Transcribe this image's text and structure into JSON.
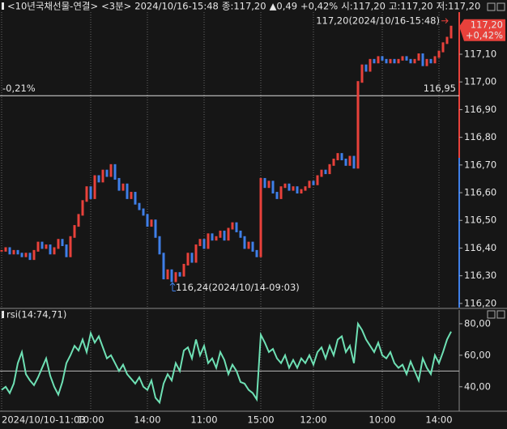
{
  "header": {
    "items": [
      {
        "text": "<10년국채선물-연결>",
        "color": "#e6e6e6"
      },
      {
        "text": "<3분>",
        "color": "#e6e6e6"
      },
      {
        "text": "2024/10/16-15:48",
        "color": "#e6e6e6"
      },
      {
        "text": "종:117,20",
        "color": "#e6e6e6"
      },
      {
        "text": "▲0,49",
        "color": "#ff4a4a"
      },
      {
        "text": "+0,42%",
        "color": "#ff4a4a"
      },
      {
        "text": "시:117,20",
        "color": "#e6e6e6"
      },
      {
        "text": "고:117,20",
        "color": "#e6e6e6"
      },
      {
        "text": "저:117,20",
        "color": "#e6e6e6"
      }
    ]
  },
  "chart_data": [
    {
      "type": "candlestick",
      "up_color": "#e8413b",
      "down_color": "#3f7fe8",
      "values": [
        116.39,
        116.4,
        116.38,
        116.39,
        116.38,
        116.37,
        116.38,
        116.36,
        116.39,
        116.42,
        116.4,
        116.41,
        116.38,
        116.4,
        116.43,
        116.41,
        116.37,
        116.44,
        116.48,
        116.52,
        116.57,
        116.62,
        116.58,
        116.66,
        116.64,
        116.68,
        116.66,
        116.7,
        116.65,
        116.61,
        116.63,
        116.58,
        116.6,
        116.56,
        116.54,
        116.52,
        116.48,
        116.5,
        116.44,
        116.38,
        116.29,
        116.32,
        116.28,
        116.31,
        116.3,
        116.34,
        116.38,
        116.35,
        116.41,
        116.43,
        116.4,
        116.45,
        116.43,
        116.44,
        116.46,
        116.43,
        116.47,
        116.49,
        116.46,
        116.44,
        116.4,
        116.42,
        116.39,
        116.37,
        116.65,
        116.62,
        116.64,
        116.6,
        116.58,
        116.62,
        116.63,
        116.61,
        116.62,
        116.6,
        116.61,
        116.62,
        116.64,
        116.63,
        116.66,
        116.68,
        116.67,
        116.7,
        116.72,
        116.74,
        116.72,
        116.7,
        116.73,
        116.69,
        117.0,
        117.06,
        117.04,
        117.08,
        117.07,
        117.09,
        117.08,
        117.07,
        117.08,
        117.07,
        117.08,
        117.09,
        117.08,
        117.07,
        117.08,
        117.1,
        117.06,
        117.08,
        117.07,
        117.09,
        117.11,
        117.14,
        117.16,
        117.2
      ],
      "ylim": [
        116.185,
        117.252
      ],
      "yticks": [
        {
          "value": 116.2,
          "label": "116,20"
        },
        {
          "value": 116.3,
          "label": "116,30"
        },
        {
          "value": 116.4,
          "label": "116,40"
        },
        {
          "value": 116.5,
          "label": "116,50"
        },
        {
          "value": 116.6,
          "label": "116,60"
        },
        {
          "value": 116.7,
          "label": "116,70"
        },
        {
          "value": 116.8,
          "label": "116,80"
        },
        {
          "value": 116.9,
          "label": "116,90"
        },
        {
          "value": 117.0,
          "label": "117,00"
        },
        {
          "value": 117.1,
          "label": "117,10"
        }
      ],
      "reference": {
        "value": 116.95,
        "label": "116,95",
        "change": "-0,21%"
      },
      "high_label": "117,20(2024/10/16-15:48)",
      "low_label": "116,24(2024/10/14-09:03)",
      "last_price": {
        "value": 117.2,
        "label": "117,20",
        "change": "+0,42%"
      }
    },
    {
      "type": "line",
      "title": "rsi(14:74,71)",
      "color": "#6ee0b4",
      "categories": [
        "2024/10/10-11:03",
        null,
        null,
        null,
        null,
        null,
        null,
        null,
        null,
        null,
        null,
        null,
        null,
        null,
        null,
        null,
        null,
        null,
        null,
        null,
        null,
        null,
        "10:00",
        null,
        null,
        null,
        null,
        null,
        null,
        null,
        null,
        null,
        null,
        null,
        null,
        null,
        "14:00",
        null,
        null,
        null,
        null,
        null,
        null,
        null,
        null,
        null,
        null,
        null,
        null,
        null,
        "11:00",
        null,
        null,
        null,
        null,
        null,
        null,
        null,
        null,
        null,
        null,
        null,
        null,
        null,
        "15:00",
        null,
        null,
        null,
        null,
        null,
        null,
        null,
        null,
        null,
        null,
        null,
        null,
        "12:00",
        null,
        null,
        null,
        null,
        null,
        null,
        null,
        null,
        null,
        null,
        null,
        null,
        null,
        null,
        null,
        null,
        "10:00",
        null,
        null,
        null,
        null,
        null,
        null,
        null,
        null,
        null,
        null,
        null,
        null,
        null,
        "14:00",
        null,
        null,
        null
      ],
      "values": [
        38,
        40,
        36,
        42,
        55,
        62,
        48,
        44,
        41,
        46,
        52,
        58,
        47,
        40,
        35,
        43,
        55,
        60,
        66,
        63,
        70,
        62,
        74,
        68,
        72,
        65,
        58,
        60,
        55,
        50,
        54,
        48,
        45,
        42,
        46,
        40,
        38,
        44,
        33,
        30,
        42,
        48,
        44,
        55,
        50,
        63,
        65,
        58,
        70,
        60,
        66,
        55,
        58,
        52,
        62,
        57,
        48,
        54,
        50,
        43,
        42,
        38,
        36,
        32,
        73,
        68,
        62,
        64,
        58,
        55,
        60,
        52,
        57,
        52,
        58,
        55,
        60,
        54,
        62,
        65,
        58,
        66,
        60,
        70,
        72,
        62,
        66,
        55,
        80,
        76,
        70,
        66,
        62,
        68,
        60,
        58,
        62,
        55,
        52,
        54,
        48,
        56,
        50,
        44,
        58,
        52,
        48,
        60,
        55,
        62,
        70,
        75
      ],
      "ylim": [
        25,
        88.7
      ],
      "yticks": [
        {
          "value": 40,
          "label": "40,00"
        },
        {
          "value": 60,
          "label": "60,00"
        },
        {
          "value": 80,
          "label": "80,00"
        }
      ],
      "reference": 50
    }
  ]
}
